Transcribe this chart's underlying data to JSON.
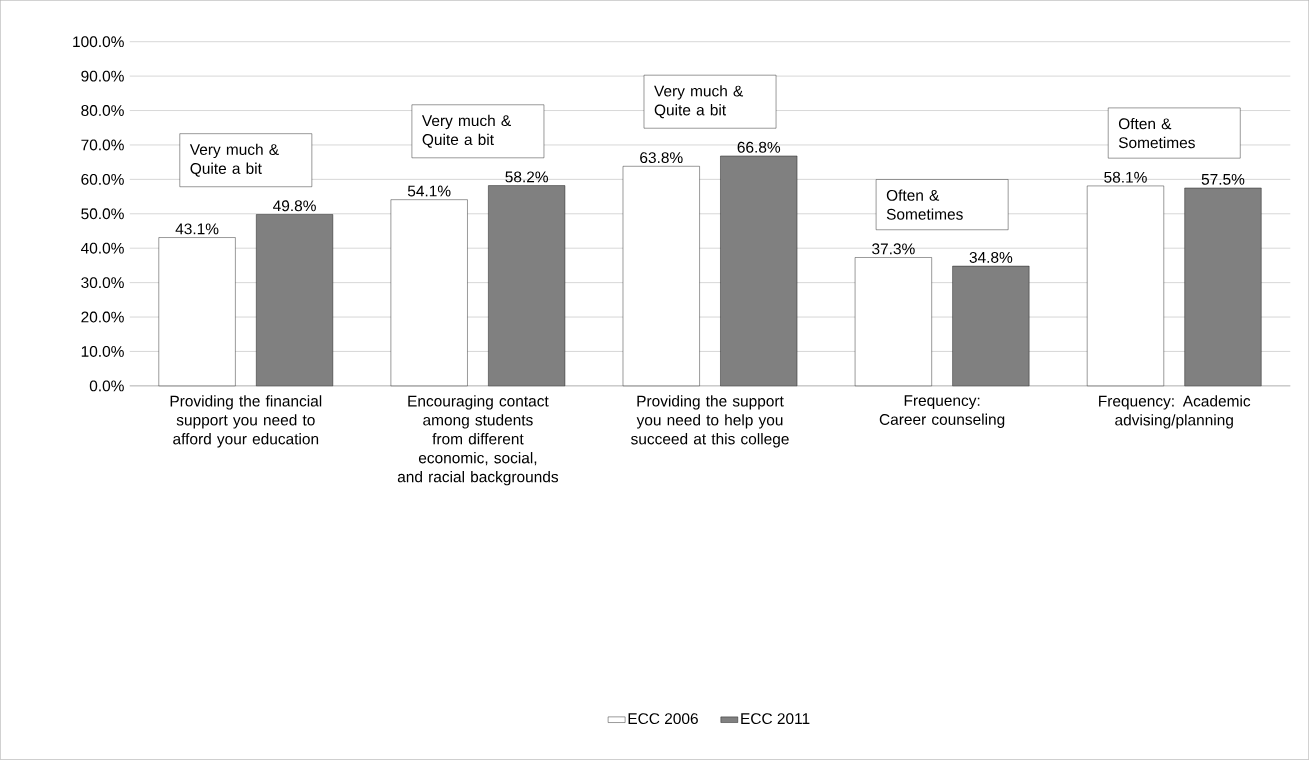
{
  "chart_data": {
    "type": "bar",
    "categories": [
      "Providing the financial support you need to afford your education",
      "Encouraging contact among students from different economic, social, and racial backgrounds",
      "Providing the support you need to help you succeed at this college",
      "Frequency: Career counseling",
      "Frequency: Academic advising/planning"
    ],
    "series": [
      {
        "name": "ECC 2006",
        "color": "#ffffff",
        "values": [
          43.1,
          54.1,
          63.8,
          37.3,
          58.1
        ],
        "value_labels": [
          "43.1%",
          "54.1%",
          "63.8%",
          "37.3%",
          "58.1%"
        ]
      },
      {
        "name": "ECC 2011",
        "color": "#808080",
        "values": [
          49.8,
          58.2,
          66.8,
          34.8,
          57.5
        ],
        "value_labels": [
          "49.8%",
          "58.2%",
          "66.8%",
          "34.8%",
          "57.5%"
        ]
      }
    ],
    "annotations": [
      "Very much & Quite a bit",
      "Very much & Quite a bit",
      "Very much & Quite a bit",
      "Often & Sometimes",
      "Often & Sometimes"
    ],
    "ylim": [
      0,
      100
    ],
    "yticks": [
      {
        "value": 0,
        "label": "0.0%"
      },
      {
        "value": 10,
        "label": "10.0%"
      },
      {
        "value": 20,
        "label": "20.0%"
      },
      {
        "value": 30,
        "label": "30.0%"
      },
      {
        "value": 40,
        "label": "40.0%"
      },
      {
        "value": 50,
        "label": "50.0%"
      },
      {
        "value": 60,
        "label": "60.0%"
      },
      {
        "value": 70,
        "label": "70.0%"
      },
      {
        "value": 80,
        "label": "80.0%"
      },
      {
        "value": 90,
        "label": "90.0%"
      },
      {
        "value": 100,
        "label": "100.0%"
      }
    ],
    "grid": "y",
    "legend": "bottom"
  }
}
